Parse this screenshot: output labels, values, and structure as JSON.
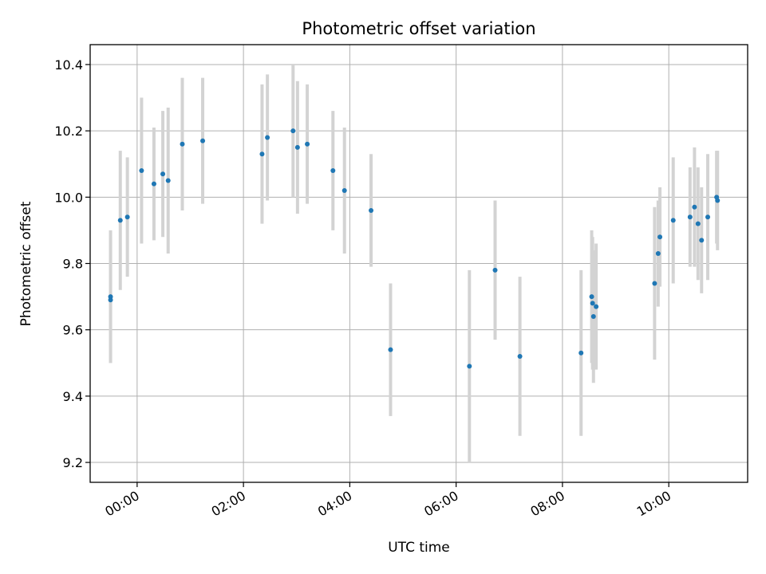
{
  "chart_data": {
    "type": "scatter",
    "title": "Photometric offset variation",
    "xlabel": "UTC time",
    "ylabel": "Photometric offset",
    "grid": true,
    "xlim": [
      "23:07",
      "11:29"
    ],
    "ylim": [
      9.14,
      10.46
    ],
    "xticks": [
      "00:00",
      "02:00",
      "04:00",
      "06:00",
      "08:00",
      "10:00"
    ],
    "yticks": [
      "9.2",
      "9.4",
      "9.6",
      "9.8",
      "10.0",
      "10.2",
      "10.4"
    ],
    "colors": {
      "point": "#1f77b4",
      "errorbar": "#d3d3d3",
      "grid": "#b0b0b0"
    },
    "points": [
      {
        "x": "23:30",
        "y": 9.69,
        "err": 0.19
      },
      {
        "x": "23:30",
        "y": 9.7,
        "err": 0.2
      },
      {
        "x": "23:41",
        "y": 9.93,
        "err": 0.21
      },
      {
        "x": "23:49",
        "y": 9.94,
        "err": 0.18
      },
      {
        "x": "00:05",
        "y": 10.08,
        "err": 0.22
      },
      {
        "x": "00:19",
        "y": 10.04,
        "err": 0.17
      },
      {
        "x": "00:29",
        "y": 10.07,
        "err": 0.19
      },
      {
        "x": "00:35",
        "y": 10.05,
        "err": 0.22
      },
      {
        "x": "00:51",
        "y": 10.16,
        "err": 0.2
      },
      {
        "x": "01:14",
        "y": 10.17,
        "err": 0.19
      },
      {
        "x": "02:21",
        "y": 10.13,
        "err": 0.21
      },
      {
        "x": "02:27",
        "y": 10.18,
        "err": 0.19
      },
      {
        "x": "02:56",
        "y": 10.2,
        "err": 0.2
      },
      {
        "x": "03:01",
        "y": 10.15,
        "err": 0.2
      },
      {
        "x": "03:12",
        "y": 10.16,
        "err": 0.18
      },
      {
        "x": "03:41",
        "y": 10.08,
        "err": 0.18
      },
      {
        "x": "03:54",
        "y": 10.02,
        "err": 0.19
      },
      {
        "x": "04:24",
        "y": 9.96,
        "err": 0.17
      },
      {
        "x": "04:46",
        "y": 9.54,
        "err": 0.2
      },
      {
        "x": "06:15",
        "y": 9.49,
        "err": 0.29
      },
      {
        "x": "06:44",
        "y": 9.78,
        "err": 0.21
      },
      {
        "x": "07:12",
        "y": 9.52,
        "err": 0.24
      },
      {
        "x": "08:21",
        "y": 9.53,
        "err": 0.25
      },
      {
        "x": "08:33",
        "y": 9.7,
        "err": 0.2
      },
      {
        "x": "08:34",
        "y": 9.68,
        "err": 0.2
      },
      {
        "x": "08:35",
        "y": 9.64,
        "err": 0.2
      },
      {
        "x": "08:38",
        "y": 9.67,
        "err": 0.19
      },
      {
        "x": "09:44",
        "y": 9.74,
        "err": 0.23
      },
      {
        "x": "09:48",
        "y": 9.83,
        "err": 0.16
      },
      {
        "x": "09:50",
        "y": 9.88,
        "err": 0.15
      },
      {
        "x": "10:05",
        "y": 9.93,
        "err": 0.19
      },
      {
        "x": "10:24",
        "y": 9.94,
        "err": 0.15
      },
      {
        "x": "10:29",
        "y": 9.97,
        "err": 0.18
      },
      {
        "x": "10:33",
        "y": 9.92,
        "err": 0.17
      },
      {
        "x": "10:37",
        "y": 9.87,
        "err": 0.16
      },
      {
        "x": "10:44",
        "y": 9.94,
        "err": 0.19
      },
      {
        "x": "10:54",
        "y": 10.0,
        "err": 0.14
      },
      {
        "x": "10:55",
        "y": 9.99,
        "err": 0.15
      }
    ]
  }
}
